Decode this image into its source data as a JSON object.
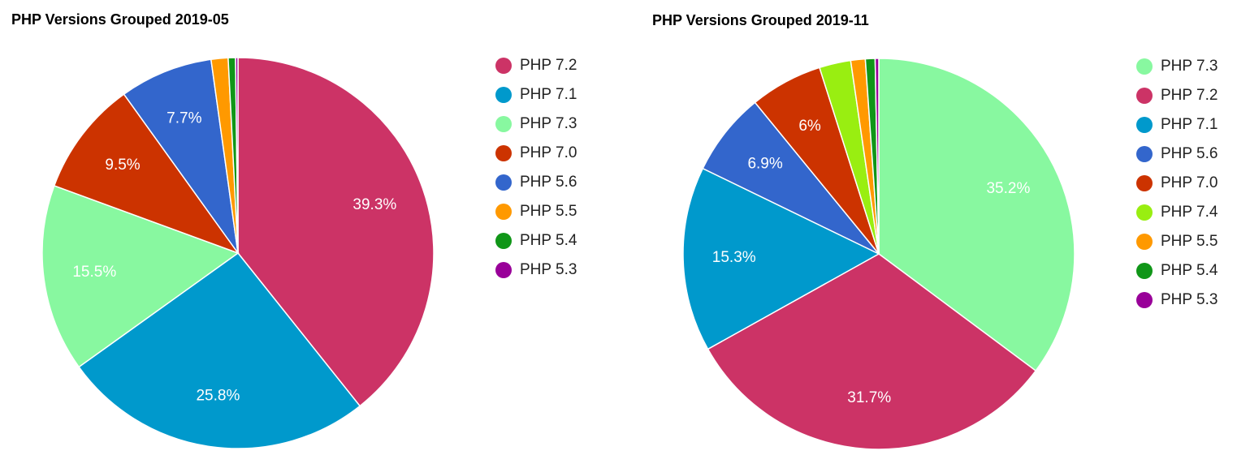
{
  "chart_data": [
    {
      "type": "pie",
      "title": "PHP Versions Grouped 2019-05",
      "categories": [
        "PHP 7.2",
        "PHP 7.1",
        "PHP 7.3",
        "PHP 7.0",
        "PHP 5.6",
        "PHP 5.5",
        "PHP 5.4",
        "PHP 5.3"
      ],
      "values": [
        39.3,
        25.8,
        15.5,
        9.5,
        7.7,
        1.4,
        0.6,
        0.2
      ],
      "value_labels": [
        "39.3%",
        "25.8%",
        "15.5%",
        "9.5%",
        "7.7%",
        null,
        null,
        null
      ],
      "colors": [
        "#cc3366",
        "#0099cc",
        "#88f8a0",
        "#cc3300",
        "#3366cc",
        "#ff9900",
        "#109618",
        "#990099"
      ]
    },
    {
      "type": "pie",
      "title": "PHP Versions Grouped 2019-11",
      "categories": [
        "PHP 7.3",
        "PHP 7.2",
        "PHP 7.1",
        "PHP 5.6",
        "PHP 7.0",
        "PHP 7.4",
        "PHP 5.5",
        "PHP 5.4",
        "PHP 5.3"
      ],
      "values": [
        35.2,
        31.7,
        15.3,
        6.9,
        6,
        2.6,
        1.2,
        0.8,
        0.3
      ],
      "value_labels": [
        "35.2%",
        "31.7%",
        "15.3%",
        "6.9%",
        "6%",
        null,
        null,
        null,
        null
      ],
      "colors": [
        "#88f8a0",
        "#cc3366",
        "#0099cc",
        "#3366cc",
        "#cc3300",
        "#99ee11",
        "#ff9900",
        "#109618",
        "#990099"
      ]
    }
  ]
}
